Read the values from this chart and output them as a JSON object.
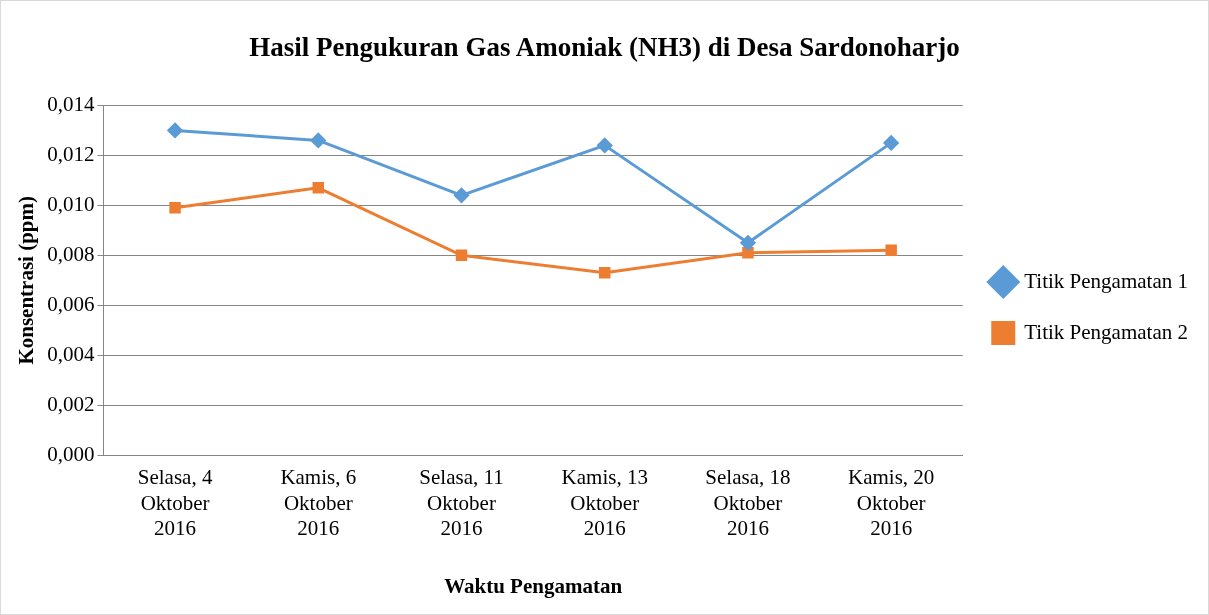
{
  "chart_data": {
    "type": "line",
    "title": "Hasil Pengukuran Gas Amoniak (NH3) di Desa Sardonoharjo",
    "xlabel": "Waktu Pengamatan",
    "ylabel": "Konsentrasi (ppm)",
    "categories": [
      "Selasa, 4 Oktober 2016",
      "Kamis, 6 Oktober 2016",
      "Selasa, 11 Oktober 2016",
      "Kamis, 13 Oktober 2016",
      "Selasa, 18 Oktober 2016",
      "Kamis, 20 Oktober 2016"
    ],
    "series": [
      {
        "name": "Titik Pengamatan 1",
        "color": "#5b9bd5",
        "marker": "diamond",
        "values": [
          0.013,
          0.0126,
          0.0104,
          0.0124,
          0.0085,
          0.0125
        ]
      },
      {
        "name": "Titik Pengamatan 2",
        "color": "#ed7d31",
        "marker": "square",
        "values": [
          0.0099,
          0.0107,
          0.008,
          0.0073,
          0.0081,
          0.0082
        ]
      }
    ],
    "ylim": [
      0,
      0.014
    ],
    "yticks": [
      {
        "value": 0,
        "label": "0,000"
      },
      {
        "value": 0.002,
        "label": "0,002"
      },
      {
        "value": 0.004,
        "label": "0,004"
      },
      {
        "value": 0.006,
        "label": "0,006"
      },
      {
        "value": 0.008,
        "label": "0,008"
      },
      {
        "value": 0.01,
        "label": "0,010"
      },
      {
        "value": 0.012,
        "label": "0,012"
      },
      {
        "value": 0.014,
        "label": "0,014"
      }
    ],
    "grid": "y",
    "legend": "right",
    "line_style": "solid"
  }
}
